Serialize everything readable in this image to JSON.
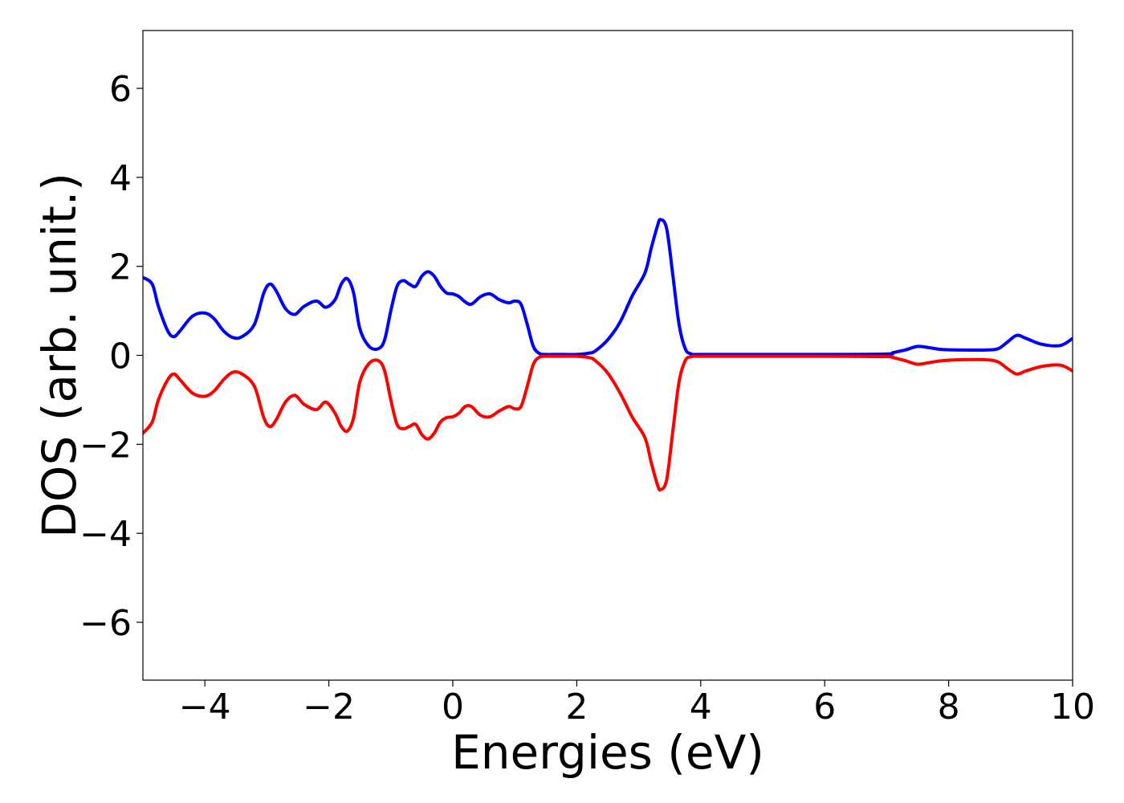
{
  "chart_data": {
    "type": "line",
    "title": "",
    "xlabel": "Energies (eV)",
    "ylabel": "DOS (arb. unit.)",
    "xlim": [
      -5,
      10
    ],
    "ylim": [
      -7.3,
      7.3
    ],
    "xticks": [
      -4,
      -2,
      0,
      2,
      4,
      6,
      8,
      10
    ],
    "yticks": [
      -6,
      -4,
      -2,
      0,
      2,
      4,
      6
    ],
    "xtick_labels": [
      "−4",
      "−2",
      "0",
      "2",
      "4",
      "6",
      "8",
      "10"
    ],
    "ytick_labels": [
      "−6",
      "−4",
      "−2",
      "0",
      "2",
      "4",
      "6"
    ],
    "grid": false,
    "legend": "none",
    "series": [
      {
        "color": "#0000ff",
        "x": [
          -5.0,
          -4.85,
          -4.75,
          -4.6,
          -4.5,
          -4.4,
          -4.2,
          -4.0,
          -3.85,
          -3.7,
          -3.55,
          -3.4,
          -3.2,
          -3.05,
          -2.95,
          -2.85,
          -2.7,
          -2.55,
          -2.4,
          -2.2,
          -2.05,
          -1.9,
          -1.8,
          -1.7,
          -1.6,
          -1.5,
          -1.35,
          -1.2,
          -1.1,
          -1.0,
          -0.9,
          -0.8,
          -0.7,
          -0.6,
          -0.5,
          -0.4,
          -0.3,
          -0.2,
          -0.1,
          0.0,
          0.1,
          0.2,
          0.3,
          0.45,
          0.6,
          0.75,
          0.9,
          1.0,
          1.1,
          1.2,
          1.3,
          1.4,
          1.5,
          1.6,
          1.8,
          2.0,
          2.2,
          2.3,
          2.5,
          2.7,
          2.9,
          3.1,
          3.2,
          3.3,
          3.35,
          3.45,
          3.55,
          3.65,
          3.75,
          3.85,
          4.0,
          5.0,
          6.0,
          7.0,
          7.1,
          7.3,
          7.5,
          7.7,
          7.9,
          8.2,
          8.6,
          8.8,
          8.95,
          9.1,
          9.25,
          9.5,
          9.8,
          10.0
        ],
        "values": [
          1.75,
          1.6,
          1.1,
          0.55,
          0.42,
          0.55,
          0.88,
          0.95,
          0.82,
          0.55,
          0.4,
          0.42,
          0.7,
          1.4,
          1.6,
          1.45,
          1.05,
          0.92,
          1.1,
          1.22,
          1.08,
          1.25,
          1.6,
          1.72,
          1.4,
          0.6,
          0.2,
          0.15,
          0.35,
          1.0,
          1.55,
          1.68,
          1.6,
          1.55,
          1.78,
          1.88,
          1.78,
          1.55,
          1.4,
          1.38,
          1.32,
          1.2,
          1.15,
          1.32,
          1.38,
          1.25,
          1.18,
          1.22,
          1.15,
          0.7,
          0.2,
          0.04,
          0.02,
          0.02,
          0.02,
          0.02,
          0.05,
          0.1,
          0.35,
          0.75,
          1.35,
          1.85,
          2.4,
          2.9,
          3.05,
          2.85,
          1.8,
          0.7,
          0.15,
          0.03,
          0.02,
          0.02,
          0.02,
          0.03,
          0.06,
          0.12,
          0.2,
          0.17,
          0.13,
          0.12,
          0.12,
          0.15,
          0.3,
          0.45,
          0.38,
          0.25,
          0.22,
          0.38
        ]
      },
      {
        "color": "#ff0000",
        "x": [
          -5.0,
          -4.85,
          -4.75,
          -4.6,
          -4.5,
          -4.4,
          -4.2,
          -4.0,
          -3.85,
          -3.7,
          -3.55,
          -3.4,
          -3.2,
          -3.05,
          -2.95,
          -2.85,
          -2.7,
          -2.55,
          -2.4,
          -2.2,
          -2.05,
          -1.9,
          -1.8,
          -1.7,
          -1.6,
          -1.5,
          -1.35,
          -1.2,
          -1.1,
          -1.0,
          -0.9,
          -0.8,
          -0.7,
          -0.6,
          -0.5,
          -0.4,
          -0.3,
          -0.2,
          -0.1,
          0.0,
          0.1,
          0.2,
          0.3,
          0.45,
          0.6,
          0.75,
          0.9,
          1.0,
          1.1,
          1.2,
          1.3,
          1.4,
          1.5,
          1.6,
          1.8,
          2.0,
          2.2,
          2.3,
          2.5,
          2.7,
          2.9,
          3.1,
          3.2,
          3.3,
          3.35,
          3.45,
          3.55,
          3.65,
          3.75,
          3.85,
          4.0,
          5.0,
          6.0,
          7.0,
          7.1,
          7.3,
          7.5,
          7.7,
          7.9,
          8.2,
          8.6,
          8.8,
          8.95,
          9.1,
          9.25,
          9.5,
          9.8,
          10.0
        ],
        "values": [
          -1.75,
          -1.5,
          -1.0,
          -0.55,
          -0.42,
          -0.55,
          -0.85,
          -0.92,
          -0.8,
          -0.55,
          -0.38,
          -0.42,
          -0.7,
          -1.4,
          -1.6,
          -1.45,
          -1.05,
          -0.9,
          -1.1,
          -1.22,
          -1.05,
          -1.3,
          -1.6,
          -1.7,
          -1.4,
          -0.6,
          -0.18,
          -0.12,
          -0.35,
          -1.0,
          -1.55,
          -1.65,
          -1.6,
          -1.55,
          -1.78,
          -1.88,
          -1.75,
          -1.5,
          -1.4,
          -1.38,
          -1.3,
          -1.15,
          -1.15,
          -1.35,
          -1.38,
          -1.25,
          -1.15,
          -1.2,
          -1.15,
          -0.7,
          -0.2,
          -0.04,
          -0.02,
          -0.02,
          -0.02,
          -0.02,
          -0.05,
          -0.12,
          -0.4,
          -0.85,
          -1.4,
          -1.85,
          -2.4,
          -2.9,
          -3.02,
          -2.8,
          -1.7,
          -0.6,
          -0.12,
          -0.03,
          -0.02,
          -0.02,
          -0.02,
          -0.03,
          -0.05,
          -0.12,
          -0.2,
          -0.16,
          -0.12,
          -0.1,
          -0.1,
          -0.15,
          -0.3,
          -0.42,
          -0.35,
          -0.25,
          -0.22,
          -0.35
        ]
      }
    ]
  }
}
